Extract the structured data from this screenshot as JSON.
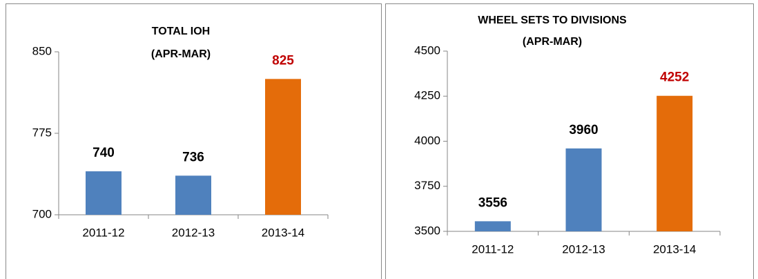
{
  "chart_data": [
    {
      "type": "bar",
      "title": "TOTAL  IOH",
      "subtitle": "(APR-MAR)",
      "categories": [
        "2011-12",
        "2012-13",
        "2013-14"
      ],
      "values": [
        740,
        736,
        825
      ],
      "colors": [
        "#4f81bd",
        "#4f81bd",
        "#e46c0a"
      ],
      "label_colors": [
        "#000000",
        "#000000",
        "#c00000"
      ],
      "ylim": [
        700,
        850
      ],
      "yticks": [
        700,
        775,
        850
      ]
    },
    {
      "type": "bar",
      "title": "WHEEL SETS TO DIVISIONS",
      "subtitle": "(APR-MAR)",
      "categories": [
        "2011-12",
        "2012-13",
        "2013-14"
      ],
      "values": [
        3556,
        3960,
        4252
      ],
      "colors": [
        "#4f81bd",
        "#4f81bd",
        "#e46c0a"
      ],
      "label_colors": [
        "#000000",
        "#000000",
        "#c00000"
      ],
      "ylim": [
        3500,
        4500
      ],
      "yticks": [
        3500,
        3750,
        4000,
        4250,
        4500
      ]
    }
  ]
}
